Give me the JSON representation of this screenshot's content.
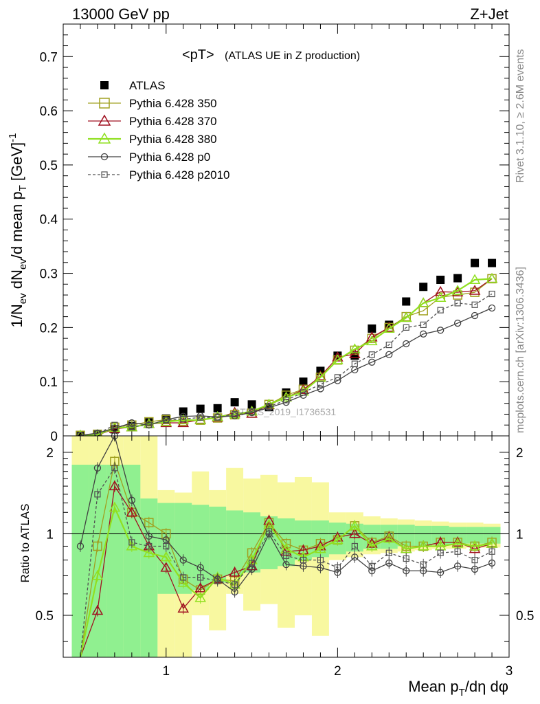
{
  "header": {
    "left": "13000 GeV pp",
    "right": "Z+Jet"
  },
  "side_text": {
    "rivet": "Rivet 3.1.10, ≥ 2.6M events",
    "mcplots": "mcplots.cern.ch [arXiv:1306.3436]"
  },
  "watermark": "ATLAS_2019_I1736531",
  "chart_data": [
    {
      "type": "scatter",
      "panel": "main",
      "title_main": "<pT>",
      "title_sub": "(ATLAS UE in Z production)",
      "ylabel": "1/N_ev dN_ev/d mean p_T [GeV]^-1",
      "xlim": [
        0.4,
        3.0
      ],
      "ylim": [
        0,
        0.76
      ],
      "x_ticks": [
        1,
        2,
        3
      ],
      "y_ticks": [
        0,
        0.1,
        0.2,
        0.3,
        0.4,
        0.5,
        0.6,
        0.7
      ],
      "y_tick_labels": [
        "0",
        "0.1",
        "0.2",
        "0.3",
        "0.4",
        "0.5",
        "0.6",
        "0.7"
      ],
      "legend_position": "top-left",
      "x": [
        0.5,
        0.6,
        0.7,
        0.8,
        0.9,
        1.0,
        1.1,
        1.2,
        1.3,
        1.4,
        1.5,
        1.6,
        1.7,
        1.8,
        1.9,
        2.0,
        2.1,
        2.2,
        2.3,
        2.4,
        2.5,
        2.6,
        2.7,
        2.8,
        2.9
      ],
      "series": [
        {
          "name": "ATLAS",
          "color": "#000000",
          "marker": "filled-square",
          "line": "none",
          "values": [
            0.001,
            0.003,
            0.012,
            0.018,
            0.025,
            0.032,
            0.045,
            0.05,
            0.051,
            0.062,
            0.058,
            0.053,
            0.08,
            0.1,
            0.12,
            0.148,
            0.148,
            0.198,
            0.205,
            0.248,
            0.275,
            0.288,
            0.291,
            0.319,
            0.319
          ]
        },
        {
          "name": "Pythia 6.428 350",
          "color": "#a0a020",
          "marker": "open-square",
          "line": "solid",
          "values": [
            0.001,
            0.003,
            0.016,
            0.02,
            0.026,
            0.03,
            0.027,
            0.029,
            0.033,
            0.039,
            0.042,
            0.058,
            0.075,
            0.086,
            0.108,
            0.14,
            0.158,
            0.18,
            0.2,
            0.22,
            0.231,
            0.256,
            0.26,
            0.265,
            0.29
          ]
        },
        {
          "name": "Pythia 6.428 370",
          "color": "#a01020",
          "marker": "open-triangle",
          "line": "solid",
          "values": [
            0.0005,
            0.0015,
            0.013,
            0.016,
            0.022,
            0.024,
            0.024,
            0.03,
            0.034,
            0.043,
            0.041,
            0.057,
            0.071,
            0.085,
            0.11,
            0.145,
            0.151,
            0.182,
            0.2,
            0.218,
            0.245,
            0.266,
            0.265,
            0.268,
            0.29
          ]
        },
        {
          "name": "Pythia 6.428 380",
          "color": "#90e020",
          "marker": "open-triangle",
          "line": "solid",
          "values": [
            0.001,
            0.002,
            0.015,
            0.016,
            0.022,
            0.026,
            0.029,
            0.029,
            0.035,
            0.04,
            0.045,
            0.058,
            0.071,
            0.082,
            0.108,
            0.14,
            0.16,
            0.175,
            0.198,
            0.218,
            0.245,
            0.255,
            0.268,
            0.288,
            0.29
          ]
        },
        {
          "name": "Pythia 6.428 p0",
          "color": "#404040",
          "marker": "open-circle",
          "line": "solid",
          "values": [
            0.001,
            0.005,
            0.014,
            0.024,
            0.02,
            0.03,
            0.036,
            0.037,
            0.035,
            0.037,
            0.043,
            0.052,
            0.062,
            0.075,
            0.087,
            0.102,
            0.122,
            0.136,
            0.15,
            0.17,
            0.188,
            0.195,
            0.208,
            0.222,
            0.236
          ]
        },
        {
          "name": "Pythia 6.428 p2010",
          "color": "#505050",
          "marker": "open-square-small",
          "line": "dashed",
          "values": [
            0.001,
            0.004,
            0.02,
            0.017,
            0.02,
            0.029,
            0.031,
            0.034,
            0.034,
            0.04,
            0.045,
            0.054,
            0.066,
            0.08,
            0.095,
            0.108,
            0.133,
            0.15,
            0.168,
            0.2,
            0.205,
            0.232,
            0.245,
            0.242,
            0.262
          ]
        }
      ]
    },
    {
      "type": "line",
      "panel": "ratio",
      "ylabel": "Ratio to ATLAS",
      "xlabel": "Mean p_T/dη dφ",
      "xlim": [
        0.4,
        3.0
      ],
      "ylim": [
        0.35,
        2.3
      ],
      "y_scale": "log",
      "x_ticks": [
        1,
        2,
        3
      ],
      "x_tick_labels": [
        "1",
        "2",
        "3"
      ],
      "y_ticks": [
        0.5,
        1,
        2
      ],
      "y_tick_labels": [
        "0.5",
        "1",
        "2"
      ],
      "reference_line": 1,
      "uncertainty_bands": {
        "x_edges": [
          0.45,
          0.55,
          0.65,
          0.75,
          0.85,
          0.95,
          1.05,
          1.15,
          1.25,
          1.35,
          1.45,
          1.55,
          1.65,
          1.75,
          1.85,
          1.95,
          2.05,
          2.15,
          2.25,
          2.35,
          2.45,
          2.55,
          2.65,
          2.75,
          2.85,
          2.95
        ],
        "inner": {
          "color": "#90f090",
          "lower": [
            0.35,
            0.35,
            0.35,
            0.35,
            0.35,
            0.6,
            0.6,
            0.62,
            0.66,
            0.7,
            0.72,
            0.74,
            0.76,
            0.8,
            0.82,
            0.84,
            0.86,
            0.88,
            0.88,
            0.9,
            0.9,
            0.91,
            0.91,
            0.92,
            0.92
          ],
          "upper": [
            1.8,
            1.8,
            1.8,
            1.8,
            1.35,
            1.3,
            1.3,
            1.28,
            1.26,
            1.22,
            1.2,
            1.16,
            1.14,
            1.12,
            1.12,
            1.1,
            1.09,
            1.08,
            1.08,
            1.08,
            1.07,
            1.07,
            1.06,
            1.06,
            1.06
          ]
        },
        "outer": {
          "color": "#f8f8a0",
          "lower": [
            0.35,
            0.35,
            0.35,
            0.35,
            0.35,
            0.35,
            0.35,
            0.5,
            0.44,
            0.6,
            0.52,
            0.55,
            0.45,
            0.5,
            0.42,
            0.8,
            0.82,
            0.84,
            0.85,
            0.86,
            0.87,
            0.88,
            0.88,
            0.89,
            0.89
          ],
          "upper": [
            2.3,
            2.3,
            2.3,
            2.3,
            2.3,
            1.45,
            1.42,
            1.7,
            1.45,
            1.75,
            1.6,
            1.65,
            1.55,
            1.62,
            1.55,
            1.2,
            1.2,
            1.16,
            1.14,
            1.13,
            1.12,
            1.11,
            1.1,
            1.1,
            1.09
          ]
        }
      },
      "x": [
        0.5,
        0.6,
        0.7,
        0.8,
        0.9,
        1.0,
        1.1,
        1.2,
        1.3,
        1.4,
        1.5,
        1.6,
        1.7,
        1.8,
        1.9,
        2.0,
        2.1,
        2.2,
        2.3,
        2.4,
        2.5,
        2.6,
        2.7,
        2.8,
        2.9
      ],
      "series": [
        {
          "name": "Pythia 6.428 350",
          "color": "#a0a020",
          "marker": "open-square",
          "line": "solid",
          "values": [
            0.3,
            0.9,
            1.85,
            1.2,
            1.1,
            1.0,
            0.68,
            0.62,
            0.68,
            0.67,
            0.85,
            1.1,
            0.92,
            0.87,
            0.92,
            0.95,
            1.07,
            0.93,
            0.98,
            0.9,
            0.9,
            0.93,
            0.93,
            0.9,
            0.93
          ]
        },
        {
          "name": "Pythia 6.428 370",
          "color": "#a01020",
          "marker": "open-triangle",
          "line": "solid",
          "values": [
            0.3,
            0.52,
            1.5,
            1.2,
            0.9,
            0.75,
            0.53,
            0.63,
            0.68,
            0.72,
            0.76,
            1.12,
            0.86,
            0.87,
            0.9,
            0.97,
            1.0,
            0.92,
            0.97,
            0.88,
            0.9,
            0.93,
            0.93,
            0.88,
            0.92
          ]
        },
        {
          "name": "Pythia 6.428 380",
          "color": "#90e020",
          "marker": "open-triangle",
          "line": "solid",
          "values": [
            0.3,
            0.7,
            1.25,
            0.9,
            0.85,
            0.82,
            0.66,
            0.58,
            0.69,
            0.65,
            0.8,
            1.08,
            0.88,
            0.82,
            0.88,
            0.95,
            1.07,
            0.9,
            0.96,
            0.88,
            0.9,
            0.9,
            0.92,
            0.9,
            0.92
          ]
        },
        {
          "name": "Pythia 6.428 p0",
          "color": "#404040",
          "marker": "open-circle",
          "line": "solid",
          "values": [
            0.9,
            1.75,
            2.3,
            1.33,
            0.98,
            0.95,
            0.8,
            0.75,
            0.68,
            0.61,
            0.74,
            1.0,
            0.77,
            0.76,
            0.75,
            0.72,
            0.82,
            0.73,
            0.78,
            0.73,
            0.73,
            0.72,
            0.76,
            0.74,
            0.78
          ]
        },
        {
          "name": "Pythia 6.428 p2010",
          "color": "#505050",
          "marker": "open-square-small",
          "line": "dashed",
          "values": [
            0.3,
            1.4,
            1.75,
            0.93,
            0.9,
            0.9,
            0.69,
            0.69,
            0.67,
            0.65,
            0.78,
            1.02,
            0.83,
            0.8,
            0.8,
            0.75,
            0.9,
            0.76,
            0.85,
            0.81,
            0.77,
            0.85,
            0.86,
            0.8,
            0.86
          ]
        }
      ]
    }
  ]
}
